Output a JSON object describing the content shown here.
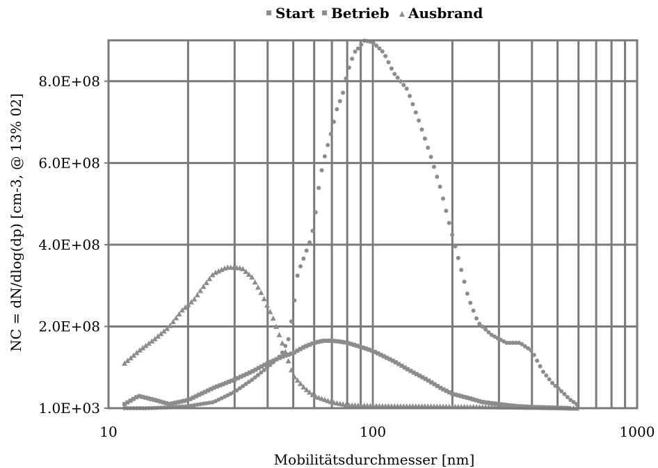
{
  "chart_data": {
    "type": "scatter",
    "x_scale": "log",
    "xlim": [
      10,
      1000
    ],
    "ylim": [
      1000,
      900000000
    ],
    "xlabel": "Mobilitätsdurchmesser [nm]",
    "ylabel": "NC = dN/dlog(dp) [cm-3, @ 13% 02]",
    "x_ticks": [
      "10",
      "100",
      "1000"
    ],
    "y_ticks": [
      "1.0E+03",
      "2.0E+08",
      "4.0E+08",
      "6.0E+08",
      "8.0E+08"
    ],
    "grid": true,
    "legend_position": "top",
    "colors": {
      "series": "#8c8c8c",
      "grid": "#7a7a7a"
    },
    "series": [
      {
        "name": "Start",
        "marker": "circle",
        "points": [
          [
            11.5,
            1000
          ],
          [
            14,
            1000
          ],
          [
            17,
            2000000
          ],
          [
            20,
            5000000
          ],
          [
            25,
            15000000
          ],
          [
            30,
            40000000
          ],
          [
            35,
            70000000
          ],
          [
            40,
            100000000
          ],
          [
            45,
            130000000
          ],
          [
            48,
            170000000
          ],
          [
            50,
            240000000
          ],
          [
            52,
            330000000
          ],
          [
            55,
            370000000
          ],
          [
            58,
            410000000
          ],
          [
            60,
            450000000
          ],
          [
            63,
            560000000
          ],
          [
            66,
            620000000
          ],
          [
            70,
            680000000
          ],
          [
            73,
            730000000
          ],
          [
            77,
            770000000
          ],
          [
            80,
            820000000
          ],
          [
            85,
            870000000
          ],
          [
            88,
            880000000
          ],
          [
            93,
            900000000
          ],
          [
            100,
            895000000
          ],
          [
            110,
            870000000
          ],
          [
            120,
            820000000
          ],
          [
            135,
            780000000
          ],
          [
            150,
            700000000
          ],
          [
            165,
            620000000
          ],
          [
            180,
            540000000
          ],
          [
            195,
            450000000
          ],
          [
            210,
            370000000
          ],
          [
            230,
            270000000
          ],
          [
            250,
            210000000
          ],
          [
            280,
            180000000
          ],
          [
            320,
            160000000
          ],
          [
            360,
            160000000
          ],
          [
            400,
            140000000
          ],
          [
            440,
            90000000
          ],
          [
            480,
            60000000
          ],
          [
            520,
            40000000
          ],
          [
            560,
            20000000
          ],
          [
            590,
            10000000
          ]
        ]
      },
      {
        "name": "Betrieb",
        "marker": "square",
        "points": [
          [
            11.5,
            10000000
          ],
          [
            13,
            30000000
          ],
          [
            15,
            20000000
          ],
          [
            17,
            10000000
          ],
          [
            20,
            20000000
          ],
          [
            25,
            50000000
          ],
          [
            30,
            70000000
          ],
          [
            35,
            90000000
          ],
          [
            40,
            110000000
          ],
          [
            45,
            125000000
          ],
          [
            50,
            135000000
          ],
          [
            55,
            150000000
          ],
          [
            60,
            160000000
          ],
          [
            65,
            165000000
          ],
          [
            70,
            165000000
          ],
          [
            75,
            163000000
          ],
          [
            80,
            160000000
          ],
          [
            90,
            150000000
          ],
          [
            100,
            140000000
          ],
          [
            120,
            115000000
          ],
          [
            140,
            90000000
          ],
          [
            160,
            70000000
          ],
          [
            180,
            50000000
          ],
          [
            200,
            35000000
          ],
          [
            230,
            25000000
          ],
          [
            260,
            15000000
          ],
          [
            300,
            10000000
          ],
          [
            350,
            5000000
          ],
          [
            400,
            3000000
          ],
          [
            450,
            2000000
          ],
          [
            500,
            1000000
          ],
          [
            550,
            1000
          ]
        ]
      },
      {
        "name": "Ausbrand",
        "marker": "triangle",
        "points": [
          [
            11.5,
            110000000
          ],
          [
            13,
            140000000
          ],
          [
            15,
            170000000
          ],
          [
            17,
            200000000
          ],
          [
            19,
            240000000
          ],
          [
            21,
            265000000
          ],
          [
            23,
            300000000
          ],
          [
            25,
            330000000
          ],
          [
            28,
            345000000
          ],
          [
            32,
            343000000
          ],
          [
            35,
            320000000
          ],
          [
            38,
            280000000
          ],
          [
            42,
            220000000
          ],
          [
            46,
            150000000
          ],
          [
            50,
            80000000
          ],
          [
            55,
            50000000
          ],
          [
            60,
            30000000
          ],
          [
            70,
            15000000
          ],
          [
            80,
            8000000
          ],
          [
            100,
            6000000
          ],
          [
            130,
            5000000
          ],
          [
            160,
            5000000
          ],
          [
            200,
            4000000
          ],
          [
            300,
            3000000
          ],
          [
            400,
            2000000
          ],
          [
            500,
            1000000
          ],
          [
            590,
            1000
          ]
        ]
      }
    ]
  }
}
